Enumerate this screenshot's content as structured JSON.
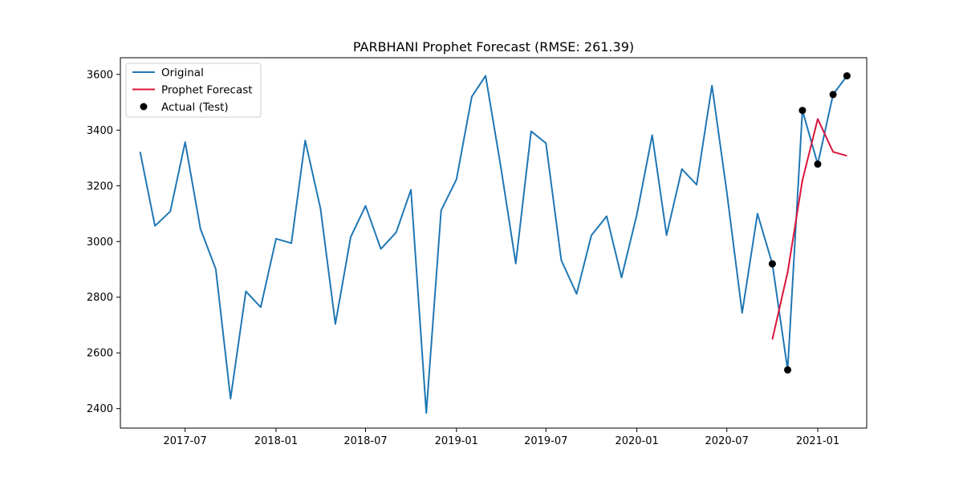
{
  "chart_data": {
    "type": "line",
    "title": "PARBHANI Prophet Forecast (RMSE: 261.39)",
    "xlabel": "",
    "ylabel": "",
    "x_range": [
      "2017-02-20",
      "2021-04-10"
    ],
    "ylim": [
      2330,
      3660
    ],
    "x_ticks": [
      "2017-07",
      "2018-01",
      "2018-07",
      "2019-01",
      "2019-07",
      "2020-01",
      "2020-07",
      "2021-01"
    ],
    "y_ticks": [
      2400,
      2600,
      2800,
      3000,
      3200,
      3400,
      3600
    ],
    "grid": false,
    "legend_position": "upper-left",
    "series": [
      {
        "name": "Original",
        "style": "line",
        "color": "#1f77b4",
        "points": [
          [
            "2017-04",
            3322
          ],
          [
            "2017-05",
            3056
          ],
          [
            "2017-06",
            3108
          ],
          [
            "2017-07",
            3357
          ],
          [
            "2017-08",
            3045
          ],
          [
            "2017-09",
            2901
          ],
          [
            "2017-10",
            2436
          ],
          [
            "2017-11",
            2821
          ],
          [
            "2017-12",
            2764
          ],
          [
            "2018-01",
            3010
          ],
          [
            "2018-02",
            2994
          ],
          [
            "2018-03",
            3363
          ],
          [
            "2018-04",
            3118
          ],
          [
            "2018-05",
            2704
          ],
          [
            "2018-06",
            3016
          ],
          [
            "2018-07",
            3128
          ],
          [
            "2018-08",
            2973
          ],
          [
            "2018-09",
            3033
          ],
          [
            "2018-10",
            3186
          ],
          [
            "2018-11",
            2384
          ],
          [
            "2018-12",
            3112
          ],
          [
            "2019-01",
            3223
          ],
          [
            "2019-02",
            3520
          ],
          [
            "2019-03",
            3595
          ],
          [
            "2019-04",
            3266
          ],
          [
            "2019-05",
            2921
          ],
          [
            "2019-06",
            3396
          ],
          [
            "2019-07",
            3353
          ],
          [
            "2019-08",
            2933
          ],
          [
            "2019-09",
            2812
          ],
          [
            "2019-10",
            3022
          ],
          [
            "2019-11",
            3091
          ],
          [
            "2019-12",
            2871
          ],
          [
            "2020-01",
            3097
          ],
          [
            "2020-02",
            3382
          ],
          [
            "2020-03",
            3023
          ],
          [
            "2020-04",
            3260
          ],
          [
            "2020-05",
            3204
          ],
          [
            "2020-06",
            3560
          ],
          [
            "2020-07",
            3177
          ],
          [
            "2020-08",
            2744
          ],
          [
            "2020-09",
            3100
          ],
          [
            "2020-10",
            2920
          ],
          [
            "2020-11",
            2539
          ],
          [
            "2020-12",
            3471
          ],
          [
            "2021-01",
            3278
          ],
          [
            "2021-02",
            3528
          ],
          [
            "2021-03",
            3595
          ]
        ]
      },
      {
        "name": "Prophet Forecast",
        "style": "line",
        "color": "#dc143c",
        "points": [
          [
            "2020-10",
            2648
          ],
          [
            "2020-11",
            2890
          ],
          [
            "2020-12",
            3220
          ],
          [
            "2021-01",
            3440
          ],
          [
            "2021-02",
            3322
          ],
          [
            "2021-03",
            3308
          ]
        ]
      },
      {
        "name": "Actual (Test)",
        "style": "scatter",
        "color": "#000000",
        "points": [
          [
            "2020-10",
            2920
          ],
          [
            "2020-11",
            2539
          ],
          [
            "2020-12",
            3471
          ],
          [
            "2021-01",
            3278
          ],
          [
            "2021-02",
            3528
          ],
          [
            "2021-03",
            3595
          ]
        ]
      }
    ]
  }
}
